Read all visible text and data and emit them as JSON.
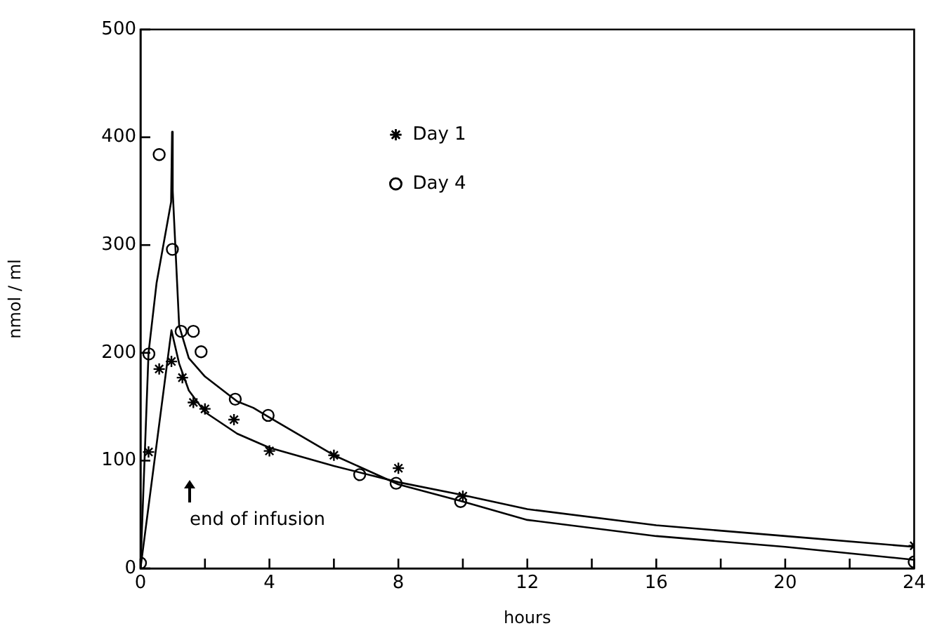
{
  "chart_data": {
    "type": "scatter",
    "xlabel": "hours",
    "ylabel": "nmol / ml",
    "xlim": [
      0,
      24
    ],
    "xticks": [
      0,
      {
        "value": 2,
        "label": null
      },
      4,
      {
        "value": 6,
        "label": null
      },
      8,
      {
        "value": 10,
        "label": null
      },
      12,
      {
        "value": 14,
        "label": null
      },
      16,
      {
        "value": 18,
        "label": null
      },
      20,
      {
        "value": 22,
        "label": null
      },
      24
    ],
    "ylim": [
      0,
      500
    ],
    "yticks": [
      0,
      100,
      200,
      300,
      400,
      500
    ],
    "grid": false,
    "legend": "top",
    "annotations": [
      "end of infusion"
    ],
    "series": [
      {
        "name": "Day 1",
        "marker": "cross",
        "color": "#000000",
        "x": [
          0.25,
          0.58,
          0.96,
          1.3,
          1.64,
          2,
          2.9,
          4,
          6,
          8,
          10,
          24
        ],
        "values": [
          108,
          185,
          192,
          177,
          154,
          148,
          138,
          109,
          105,
          93,
          67,
          21
        ]
      },
      {
        "name": "Day 4",
        "marker": "circle",
        "color": "#000000",
        "x": [
          0,
          0.26,
          0.58,
          0.99,
          1.26,
          1.64,
          1.88,
          2.94,
          3.96,
          6.8,
          7.93,
          9.93,
          24
        ],
        "values": [
          5,
          199,
          384,
          296,
          220,
          220,
          201,
          157,
          142,
          87,
          79,
          62,
          6
        ]
      },
      {
        "type": "line",
        "marker": "none",
        "color": "#000000",
        "x": [
          0,
          0.96,
          1.2,
          1.5,
          2,
          3,
          4,
          6,
          8,
          10,
          12,
          16,
          20,
          24
        ],
        "values": [
          0,
          221,
          190,
          165,
          145,
          125,
          112,
          95,
          80,
          68,
          55,
          40,
          30,
          20
        ]
      },
      {
        "type": "line",
        "marker": "none",
        "color": "#000000",
        "x": [
          0,
          0.25,
          0.5,
          0.95,
          0.98,
          1,
          1.2,
          1.5,
          2,
          3,
          3.5,
          4,
          6,
          8,
          10,
          12,
          16,
          20,
          22,
          24
        ],
        "values": [
          0,
          200,
          265,
          340,
          405,
          350,
          225,
          195,
          178,
          155,
          149,
          140,
          105,
          78,
          62,
          45,
          30,
          20,
          14,
          8
        ]
      }
    ]
  }
}
